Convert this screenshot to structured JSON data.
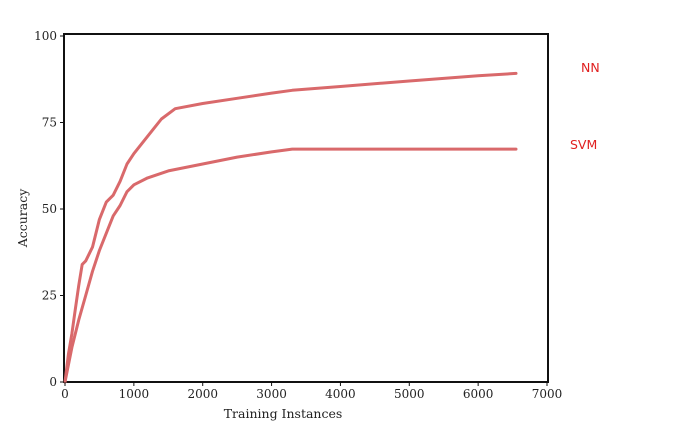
{
  "chart_data": {
    "type": "line",
    "xlabel": "Training Instances",
    "ylabel": "Accuracy",
    "xlim": [
      0,
      7000
    ],
    "ylim": [
      0,
      100
    ],
    "xticks": [
      0,
      1000,
      2000,
      3000,
      4000,
      5000,
      6000,
      7000
    ],
    "yticks": [
      0,
      25,
      50,
      75,
      100
    ],
    "grid": false,
    "legend_position": "right",
    "series": [
      {
        "name": "NN",
        "color": "#d9696b",
        "x": [
          0,
          50,
          100,
          150,
          200,
          250,
          300,
          400,
          500,
          600,
          700,
          800,
          900,
          1000,
          1200,
          1400,
          1600,
          2000,
          2500,
          3000,
          3300,
          4000,
          5000,
          6000,
          6550
        ],
        "y": [
          0,
          8,
          14,
          21,
          28,
          34,
          35,
          39,
          47,
          52,
          54,
          58,
          63,
          66,
          71,
          76,
          79,
          80.5,
          82,
          83.5,
          84.3,
          85.4,
          87,
          88.5,
          89.2
        ]
      },
      {
        "name": "SVM",
        "color": "#d9696b",
        "x": [
          0,
          100,
          200,
          300,
          400,
          500,
          600,
          700,
          800,
          900,
          1000,
          1200,
          1500,
          2000,
          2500,
          3000,
          3300,
          4000,
          5000,
          6000,
          6550
        ],
        "y": [
          0,
          10,
          18,
          25,
          32,
          38,
          43,
          48,
          51,
          55,
          57,
          59,
          61,
          63,
          65,
          66.5,
          67.3,
          67.3,
          67.3,
          67.3,
          67.3
        ]
      }
    ]
  }
}
